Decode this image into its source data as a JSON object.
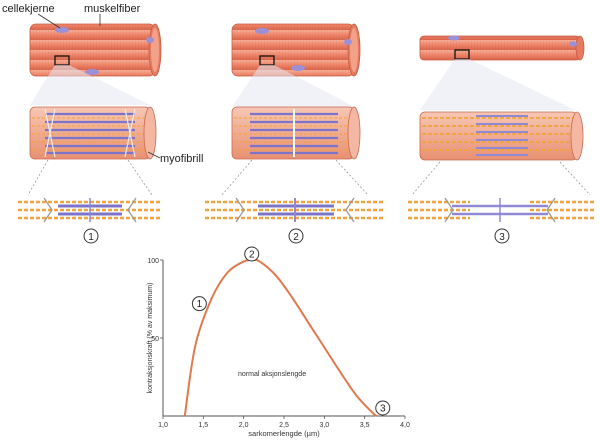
{
  "labels": {
    "cell_nucleus": "cellekjerne",
    "muscle_fiber": "muskelfiber",
    "myofibril": "myofibrill",
    "normal_range": "normal aksjonslengde"
  },
  "stages": [
    "1",
    "2",
    "3"
  ],
  "colors": {
    "fiber": "#ef8a6e",
    "fiber_dark": "#d8654a",
    "nucleus": "#9b8fd6",
    "myosin": "#7b74c9",
    "actin": "#f0a23c",
    "curve": "#e0784e"
  },
  "chart_data": {
    "type": "line",
    "title": "",
    "xlabel": "sarkomerlengde (µm)",
    "ylabel": "kontraksjonskraft (% av maksimum)",
    "xlim": [
      1.0,
      4.0
    ],
    "ylim": [
      0,
      100
    ],
    "x_ticks": [
      "1,0",
      "1,5",
      "2,0",
      "2,5",
      "3,0",
      "3,5",
      "4,0"
    ],
    "y_ticks": [
      "50",
      "100"
    ],
    "x": [
      1.27,
      1.4,
      1.6,
      1.8,
      2.0,
      2.1,
      2.2,
      2.4,
      2.6,
      2.8,
      3.0,
      3.2,
      3.4,
      3.6,
      3.65
    ],
    "y": [
      0,
      45,
      75,
      92,
      99,
      100,
      99,
      90,
      76,
      60,
      44,
      28,
      13,
      2,
      0
    ],
    "markers": [
      {
        "label": "1",
        "x": 1.55,
        "y": 72
      },
      {
        "label": "2",
        "x": 2.1,
        "y": 100
      },
      {
        "label": "3",
        "x": 3.65,
        "y": 0
      }
    ]
  }
}
